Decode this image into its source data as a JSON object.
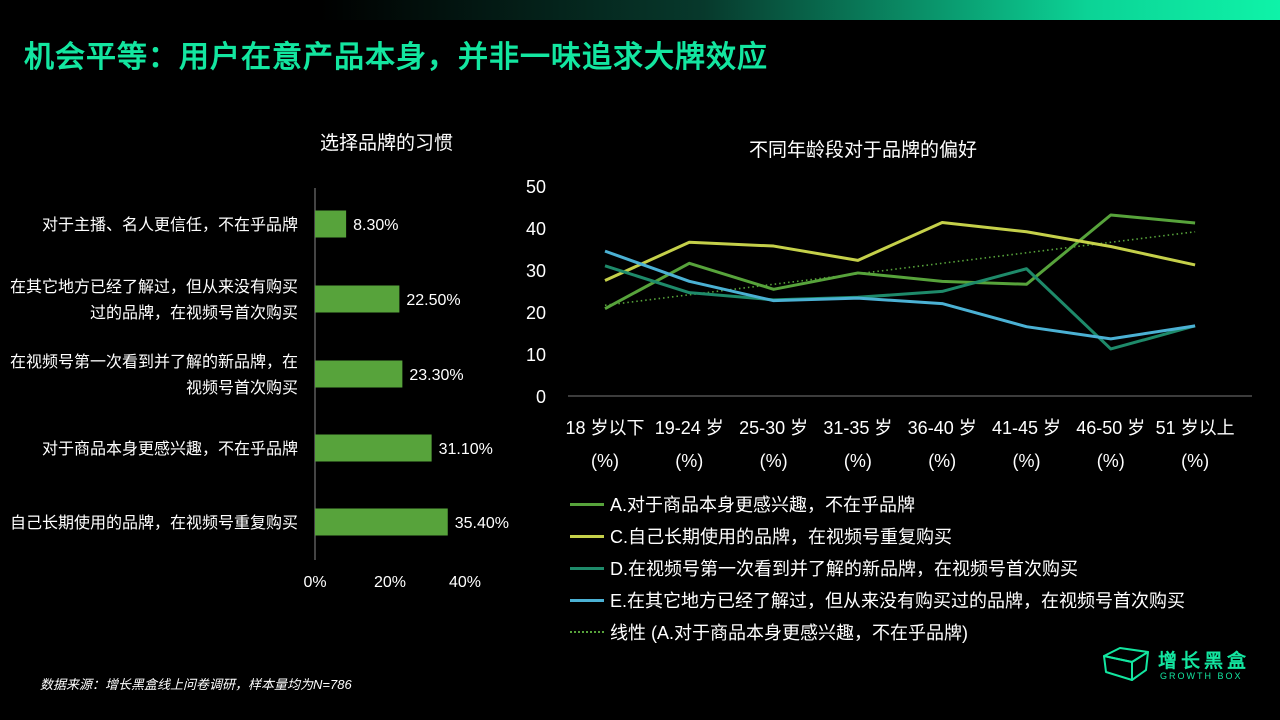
{
  "page": {
    "title": "机会平等：用户在意产品本身，并非一味追求大牌效应",
    "source": "数据来源：增长黑盒线上问卷调研，样本量均为N=786"
  },
  "brand": {
    "name_cn": "增长黑盒",
    "name_en": "GROWTH BOX",
    "color": "#13e6a0",
    "logo_icon": "cube-outline-icon"
  },
  "colors": {
    "accent": "#13e6a0",
    "bar": "#57a33b"
  },
  "chart_data": [
    {
      "type": "bar",
      "orientation": "horizontal",
      "title": "选择品牌的习惯",
      "categories": [
        [
          "对于主播、名人更信任，不在乎品牌"
        ],
        [
          "在其它地方已经了解过，但从来没有购买",
          "过的品牌，在视频号首次购买"
        ],
        [
          "在视频号第一次看到并了解的新品牌，在",
          "视频号首次购买"
        ],
        [
          "对于商品本身更感兴趣，不在乎品牌"
        ],
        [
          "自己长期使用的品牌，在视频号重复购买"
        ]
      ],
      "values": [
        8.3,
        22.5,
        23.3,
        31.1,
        35.4
      ],
      "value_labels": [
        "8.30%",
        "22.50%",
        "23.30%",
        "31.10%",
        "35.40%"
      ],
      "x_ticks": [
        "0%",
        "20%",
        "40%"
      ],
      "xlim": [
        0,
        40
      ],
      "color": "#57a33b"
    },
    {
      "type": "line",
      "title": "不同年龄段对于品牌的偏好",
      "categories": [
        [
          "18 岁以下",
          "(%)"
        ],
        [
          "19-24 岁",
          "(%)"
        ],
        [
          "25-30 岁",
          "(%)"
        ],
        [
          "31-35 岁",
          "(%)"
        ],
        [
          "36-40 岁",
          "(%)"
        ],
        [
          "41-45 岁",
          "(%)"
        ],
        [
          "46-50 岁",
          "(%)"
        ],
        [
          "51 岁以上",
          "(%)"
        ]
      ],
      "y_ticks": [
        "50",
        "40",
        "30",
        "20",
        "10",
        "0"
      ],
      "ylim": [
        0,
        50
      ],
      "series": [
        {
          "name": "A.对于商品本身更感兴趣，不在乎品牌",
          "color": "#57a33b",
          "values": [
            20.8,
            31.6,
            25.4,
            29.3,
            27.3,
            26.6,
            43.1,
            41.2
          ]
        },
        {
          "name": "C.自己长期使用的品牌，在视频号重复购买",
          "color": "#c5d04a",
          "values": [
            27.5,
            36.6,
            35.7,
            32.3,
            41.3,
            39.1,
            35.6,
            31.2
          ]
        },
        {
          "name": "D.在视频号第一次看到并了解的新品牌，在视频号首次购买",
          "color": "#1e8a6a",
          "values": [
            31.0,
            24.6,
            22.9,
            23.5,
            24.9,
            30.3,
            11.2,
            16.7
          ]
        },
        {
          "name": "E.在其它地方已经了解过，但从来没有购买过的品牌，在视频号首次购买",
          "color": "#4bb1d4",
          "values": [
            34.5,
            27.3,
            22.7,
            23.3,
            22.0,
            16.5,
            13.6,
            16.7
          ]
        }
      ],
      "trendline": {
        "name": "线性 (A.对于商品本身更感兴趣，不在乎品牌)",
        "color": "#57a33b",
        "style": "dotted",
        "from": 21.6,
        "to": 39.1
      }
    }
  ]
}
